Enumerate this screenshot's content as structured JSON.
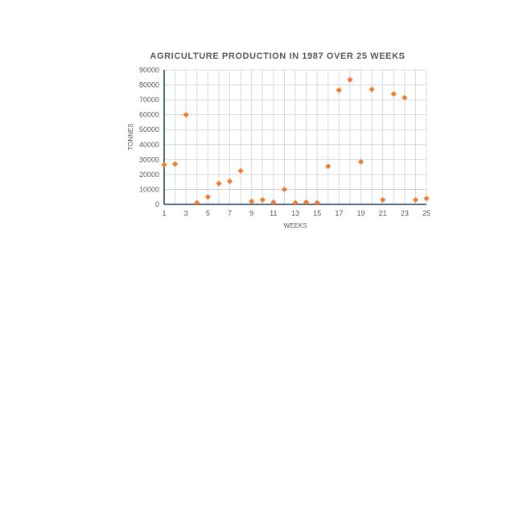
{
  "chart_data": {
    "type": "scatter",
    "title": "AGRICULTURE PRODUCTION IN 1987 OVER 25 WEEKS",
    "xlabel": "WEEKS",
    "ylabel": "TONNES",
    "xlim": [
      1,
      25
    ],
    "ylim": [
      0,
      90000
    ],
    "x_ticks": [
      "1",
      "3",
      "5",
      "7",
      "9",
      "11",
      "13",
      "15",
      "17",
      "19",
      "21",
      "23",
      "25"
    ],
    "y_ticks": [
      "0",
      "10000",
      "20000",
      "30000",
      "40000",
      "50000",
      "60000",
      "70000",
      "80000",
      "90000"
    ],
    "grid": true,
    "marker": "diamond",
    "colors": {
      "marker": "#ED7D31",
      "axis": "#1F3864",
      "grid": "#D9D9D9",
      "text": "#595959"
    },
    "series": [
      {
        "x": [
          1,
          2,
          3,
          4,
          5,
          6,
          7,
          8,
          9,
          10,
          11,
          12,
          13,
          14,
          15,
          16,
          17,
          18,
          19,
          20,
          21,
          22,
          23,
          24,
          25
        ],
        "y": [
          26500,
          27000,
          60000,
          1000,
          5000,
          14000,
          15500,
          22500,
          2000,
          3000,
          1500,
          10000,
          1000,
          1500,
          1000,
          25500,
          76500,
          83500,
          28500,
          77000,
          3000,
          74000,
          71500,
          3000,
          4000
        ]
      }
    ]
  }
}
